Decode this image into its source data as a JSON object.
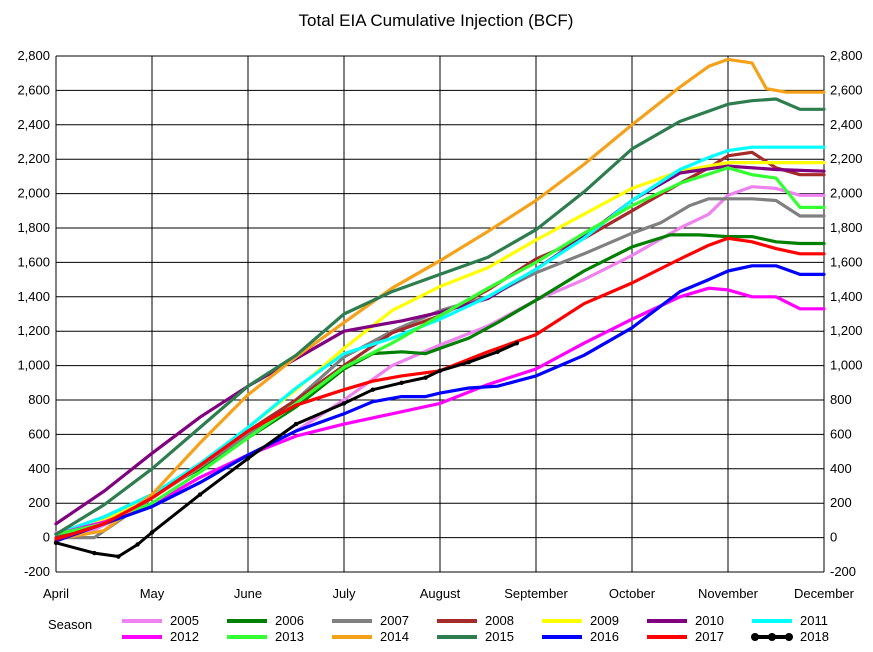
{
  "chart_data": {
    "type": "line",
    "title": "Total EIA Cumulative Injection (BCF)",
    "xlabel": "",
    "ylabel": "",
    "ylim": [
      -200,
      2800
    ],
    "y_ticks": [
      -200,
      0,
      200,
      400,
      600,
      800,
      1000,
      1200,
      1400,
      1600,
      1800,
      2000,
      2200,
      2400,
      2600,
      2800
    ],
    "y_tick_labels": [
      "-200",
      "0",
      "200",
      "400",
      "600",
      "800",
      "1,000",
      "1,200",
      "1,400",
      "1,600",
      "1,800",
      "2,000",
      "2,200",
      "2,400",
      "2,600",
      "2,800"
    ],
    "months": [
      "April",
      "May",
      "June",
      "July",
      "August",
      "September",
      "October",
      "November",
      "December"
    ],
    "grid": true,
    "dual_y_axis": true,
    "legend_position": "bottom",
    "legend_title": "Season",
    "series": [
      {
        "name": "2005",
        "color": "#ee82ee",
        "x": [
          0,
          0.3,
          0.6,
          1,
          1.5,
          2,
          2.5,
          3,
          3.5,
          4,
          4.5,
          5,
          5.5,
          6,
          6.5,
          6.8,
          7,
          7.25,
          7.5,
          7.75,
          8
        ],
        "y": [
          30,
          20,
          100,
          180,
          320,
          480,
          620,
          800,
          1000,
          1120,
          1230,
          1380,
          1500,
          1640,
          1800,
          1880,
          1990,
          2040,
          2030,
          1990,
          1990
        ]
      },
      {
        "name": "2006",
        "color": "#008000",
        "x": [
          0,
          0.5,
          1,
          1.5,
          2,
          2.5,
          3,
          3.3,
          3.6,
          3.85,
          4,
          4.3,
          4.6,
          5,
          5.5,
          6,
          6.4,
          6.7,
          7,
          7.25,
          7.5,
          7.75,
          8
        ],
        "y": [
          20,
          120,
          250,
          400,
          580,
          760,
          980,
          1070,
          1080,
          1070,
          1100,
          1160,
          1250,
          1380,
          1550,
          1690,
          1760,
          1760,
          1750,
          1750,
          1720,
          1710,
          1710
        ]
      },
      {
        "name": "2007",
        "color": "#808080",
        "x": [
          0,
          0.4,
          1,
          1.5,
          2,
          2.5,
          3,
          3.5,
          4,
          4.5,
          5,
          5.5,
          6,
          6.3,
          6.6,
          6.8,
          7,
          7.25,
          7.5,
          7.75,
          8
        ],
        "y": [
          0,
          0,
          230,
          410,
          600,
          800,
          1050,
          1200,
          1320,
          1400,
          1540,
          1650,
          1770,
          1830,
          1930,
          1970,
          1970,
          1970,
          1960,
          1870,
          1870
        ]
      },
      {
        "name": "2008",
        "color": "#a52a2a",
        "x": [
          0,
          0.5,
          1,
          1.5,
          2,
          2.5,
          3,
          3.5,
          4,
          4.5,
          5,
          5.5,
          6,
          6.5,
          6.8,
          7,
          7.25,
          7.5,
          7.75,
          8
        ],
        "y": [
          0,
          110,
          240,
          430,
          620,
          800,
          1000,
          1190,
          1290,
          1440,
          1620,
          1740,
          1900,
          2060,
          2150,
          2220,
          2240,
          2150,
          2110,
          2110
        ]
      },
      {
        "name": "2009",
        "color": "#ffff00",
        "x": [
          0,
          0.5,
          1,
          1.5,
          2,
          2.5,
          3,
          3.5,
          4,
          4.5,
          5,
          5.5,
          6,
          6.5,
          7,
          7.5,
          8
        ],
        "y": [
          20,
          100,
          230,
          420,
          640,
          860,
          1100,
          1320,
          1460,
          1570,
          1730,
          1880,
          2030,
          2130,
          2180,
          2180,
          2180
        ]
      },
      {
        "name": "2010",
        "color": "#800080",
        "x": [
          0,
          0.5,
          1,
          1.5,
          2,
          2.5,
          3,
          3.3,
          3.6,
          4,
          4.5,
          5,
          5.5,
          6,
          6.5,
          7,
          7.5,
          8
        ],
        "y": [
          80,
          270,
          490,
          700,
          880,
          1040,
          1200,
          1230,
          1260,
          1310,
          1390,
          1560,
          1750,
          1960,
          2120,
          2160,
          2140,
          2130
        ]
      },
      {
        "name": "2011",
        "color": "#00ffff",
        "x": [
          0,
          0.5,
          1,
          1.5,
          2,
          2.5,
          3,
          3.5,
          4,
          4.5,
          5,
          5.5,
          6,
          6.5,
          6.8,
          7,
          7.25,
          7.5,
          7.75,
          8
        ],
        "y": [
          20,
          120,
          250,
          430,
          640,
          870,
          1070,
          1160,
          1270,
          1400,
          1560,
          1740,
          1960,
          2140,
          2210,
          2250,
          2270,
          2270,
          2270,
          2270
        ]
      },
      {
        "name": "2012",
        "color": "#ff00ff",
        "x": [
          0,
          0.5,
          1,
          1.5,
          2,
          2.5,
          3,
          3.5,
          4,
          4.5,
          5,
          5.5,
          6,
          6.5,
          6.8,
          7,
          7.25,
          7.5,
          7.75,
          8
        ],
        "y": [
          20,
          90,
          190,
          350,
          480,
          590,
          660,
          720,
          780,
          890,
          980,
          1130,
          1270,
          1400,
          1450,
          1440,
          1400,
          1400,
          1330,
          1330
        ]
      },
      {
        "name": "2013",
        "color": "#33ff33",
        "x": [
          0,
          0.5,
          1,
          1.5,
          2,
          2.5,
          3,
          3.5,
          4,
          4.5,
          5,
          5.5,
          6,
          6.5,
          7,
          7.25,
          7.5,
          7.75,
          8
        ],
        "y": [
          20,
          80,
          200,
          380,
          580,
          780,
          990,
          1130,
          1290,
          1450,
          1600,
          1770,
          1930,
          2060,
          2150,
          2110,
          2090,
          1920,
          1920
        ]
      },
      {
        "name": "2014",
        "color": "#f5a11a",
        "x": [
          0,
          0.5,
          1,
          1.5,
          2,
          2.5,
          3,
          3.5,
          4,
          4.5,
          5,
          5.5,
          6,
          6.5,
          6.8,
          7,
          7.25,
          7.4,
          7.6,
          7.8,
          8
        ],
        "y": [
          -10,
          40,
          250,
          550,
          830,
          1050,
          1250,
          1450,
          1610,
          1780,
          1960,
          2170,
          2400,
          2620,
          2740,
          2780,
          2760,
          2610,
          2590,
          2590,
          2590
        ]
      },
      {
        "name": "2015",
        "color": "#2e7d4f",
        "x": [
          0,
          0.5,
          1,
          1.5,
          2,
          2.5,
          3,
          3.5,
          4,
          4.5,
          5,
          5.5,
          6,
          6.5,
          7,
          7.25,
          7.5,
          7.75,
          8
        ],
        "y": [
          20,
          190,
          400,
          640,
          880,
          1060,
          1300,
          1430,
          1530,
          1630,
          1790,
          2010,
          2260,
          2420,
          2520,
          2540,
          2550,
          2490,
          2490
        ]
      },
      {
        "name": "2016",
        "color": "#0000ff",
        "x": [
          0,
          0.5,
          1,
          1.5,
          2,
          2.5,
          3,
          3.3,
          3.6,
          3.85,
          4,
          4.3,
          4.6,
          5,
          5.5,
          6,
          6.5,
          6.8,
          7,
          7.25,
          7.5,
          7.75,
          8
        ],
        "y": [
          -20,
          80,
          180,
          320,
          480,
          620,
          720,
          790,
          820,
          820,
          840,
          870,
          880,
          940,
          1060,
          1220,
          1430,
          1500,
          1550,
          1580,
          1580,
          1530,
          1530
        ]
      },
      {
        "name": "2017",
        "color": "#ff0000",
        "x": [
          0,
          0.5,
          1,
          1.5,
          2,
          2.5,
          3,
          3.3,
          3.6,
          4,
          4.5,
          5,
          5.5,
          6,
          6.5,
          6.8,
          7,
          7.25,
          7.5,
          7.75,
          8
        ],
        "y": [
          -10,
          80,
          230,
          420,
          620,
          770,
          860,
          910,
          940,
          970,
          1080,
          1180,
          1360,
          1480,
          1620,
          1700,
          1740,
          1720,
          1680,
          1650,
          1650
        ]
      },
      {
        "name": "2018",
        "color": "#000000",
        "x": [
          0,
          0.4,
          0.65,
          0.85,
          1,
          1.5,
          2,
          2.5,
          3,
          3.3,
          3.6,
          3.85,
          4,
          4.3,
          4.6,
          4.8
        ],
        "y": [
          -30,
          -90,
          -110,
          -40,
          30,
          250,
          460,
          660,
          780,
          860,
          900,
          930,
          970,
          1020,
          1080,
          1130
        ]
      }
    ]
  }
}
